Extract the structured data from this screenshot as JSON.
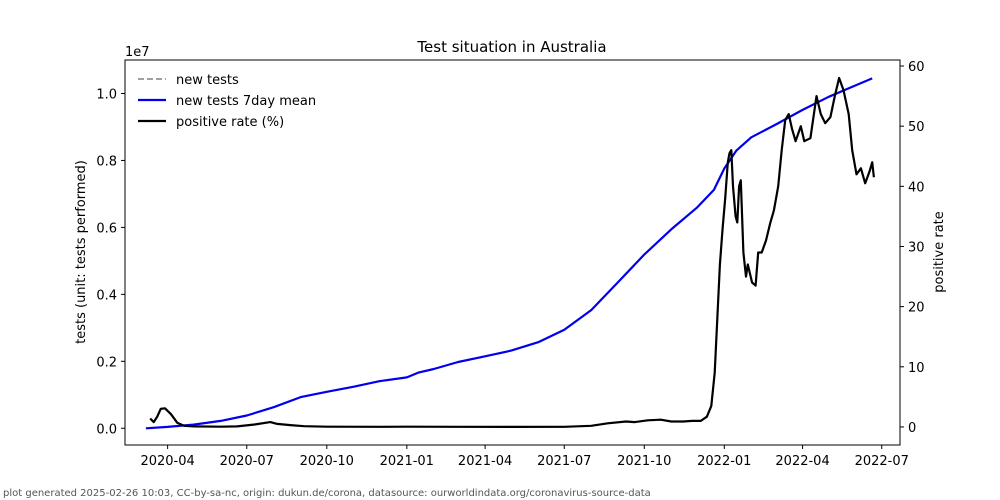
{
  "chart_data": {
    "type": "line",
    "title": "Test situation in Australia",
    "xlabel": "",
    "ylabel_left": "tests (unit: tests performed)",
    "ylabel_right": "positive rate",
    "y_left_offset_text": "1e7",
    "y_left_scale": 10000000,
    "x_range": [
      "2020-02-12",
      "2022-07-22"
    ],
    "y_left_range": [
      -0.05,
      1.1
    ],
    "y_right_range": [
      -3,
      61
    ],
    "x_ticks": [
      {
        "date": "2020-04-01",
        "label": "2020-04"
      },
      {
        "date": "2020-07-01",
        "label": "2020-07"
      },
      {
        "date": "2020-10-01",
        "label": "2020-10"
      },
      {
        "date": "2021-01-01",
        "label": "2021-01"
      },
      {
        "date": "2021-04-01",
        "label": "2021-04"
      },
      {
        "date": "2021-07-01",
        "label": "2021-07"
      },
      {
        "date": "2021-10-01",
        "label": "2021-10"
      },
      {
        "date": "2022-01-01",
        "label": "2022-01"
      },
      {
        "date": "2022-04-01",
        "label": "2022-04"
      },
      {
        "date": "2022-07-01",
        "label": "2022-07"
      }
    ],
    "y_left_ticks": [
      "0.0",
      "0.2",
      "0.4",
      "0.6",
      "0.8",
      "1.0"
    ],
    "y_right_ticks": [
      "0",
      "10",
      "20",
      "30",
      "40",
      "50",
      "60"
    ],
    "legend_position": "top-left",
    "grid": false,
    "series": [
      {
        "name": "new tests",
        "axis": "left",
        "color": "#808080",
        "style": "dashed",
        "points": []
      },
      {
        "name": "new tests 7day mean",
        "axis": "left",
        "color": "#0000ee",
        "style": "solid",
        "points": [
          [
            "2020-03-07",
            0.0
          ],
          [
            "2020-04-01",
            0.004
          ],
          [
            "2020-05-01",
            0.011
          ],
          [
            "2020-06-01",
            0.022
          ],
          [
            "2020-07-01",
            0.038
          ],
          [
            "2020-08-01",
            0.063
          ],
          [
            "2020-09-01",
            0.093
          ],
          [
            "2020-10-01",
            0.109
          ],
          [
            "2020-11-01",
            0.124
          ],
          [
            "2020-12-01",
            0.141
          ],
          [
            "2021-01-01",
            0.152
          ],
          [
            "2021-01-15",
            0.167
          ],
          [
            "2021-02-01",
            0.177
          ],
          [
            "2021-03-01",
            0.198
          ],
          [
            "2021-04-01",
            0.215
          ],
          [
            "2021-05-01",
            0.232
          ],
          [
            "2021-06-01",
            0.257
          ],
          [
            "2021-07-01",
            0.294
          ],
          [
            "2021-08-01",
            0.353
          ],
          [
            "2021-09-01",
            0.437
          ],
          [
            "2021-10-01",
            0.519
          ],
          [
            "2021-11-01",
            0.594
          ],
          [
            "2021-12-01",
            0.66
          ],
          [
            "2021-12-20",
            0.712
          ],
          [
            "2022-01-01",
            0.776
          ],
          [
            "2022-01-15",
            0.83
          ],
          [
            "2022-02-01",
            0.869
          ],
          [
            "2022-03-01",
            0.907
          ],
          [
            "2022-04-01",
            0.951
          ],
          [
            "2022-05-01",
            0.99
          ],
          [
            "2022-06-01",
            1.024
          ],
          [
            "2022-06-20",
            1.045
          ]
        ]
      },
      {
        "name": "positive rate (%)",
        "axis": "right",
        "color": "#000000",
        "style": "solid",
        "points": [
          [
            "2020-03-12",
            1.4
          ],
          [
            "2020-03-16",
            0.8
          ],
          [
            "2020-03-20",
            1.7
          ],
          [
            "2020-03-24",
            3.0
          ],
          [
            "2020-03-29",
            3.1
          ],
          [
            "2020-04-05",
            2.1
          ],
          [
            "2020-04-12",
            0.7
          ],
          [
            "2020-04-20",
            0.2
          ],
          [
            "2020-05-01",
            0.1
          ],
          [
            "2020-06-01",
            0.05
          ],
          [
            "2020-06-20",
            0.1
          ],
          [
            "2020-07-10",
            0.4
          ],
          [
            "2020-07-28",
            0.8
          ],
          [
            "2020-08-05",
            0.5
          ],
          [
            "2020-08-20",
            0.3
          ],
          [
            "2020-09-05",
            0.12
          ],
          [
            "2020-10-01",
            0.05
          ],
          [
            "2020-12-01",
            0.02
          ],
          [
            "2021-01-01",
            0.05
          ],
          [
            "2021-03-01",
            0.02
          ],
          [
            "2021-05-01",
            0.01
          ],
          [
            "2021-07-01",
            0.03
          ],
          [
            "2021-08-01",
            0.2
          ],
          [
            "2021-08-20",
            0.6
          ],
          [
            "2021-09-10",
            0.9
          ],
          [
            "2021-09-20",
            0.8
          ],
          [
            "2021-10-05",
            1.1
          ],
          [
            "2021-10-20",
            1.2
          ],
          [
            "2021-11-01",
            0.9
          ],
          [
            "2021-11-15",
            0.9
          ],
          [
            "2021-11-25",
            1.0
          ],
          [
            "2021-12-05",
            1.0
          ],
          [
            "2021-12-12",
            1.7
          ],
          [
            "2021-12-17",
            3.5
          ],
          [
            "2021-12-21",
            9.0
          ],
          [
            "2021-12-24",
            18.0
          ],
          [
            "2021-12-27",
            27.0
          ],
          [
            "2021-12-30",
            33.0
          ],
          [
            "2022-01-02",
            38.0
          ],
          [
            "2022-01-05",
            44.0
          ],
          [
            "2022-01-07",
            45.5
          ],
          [
            "2022-01-09",
            46.0
          ],
          [
            "2022-01-11",
            40.0
          ],
          [
            "2022-01-14",
            35.0
          ],
          [
            "2022-01-16",
            34.0
          ],
          [
            "2022-01-18",
            40.0
          ],
          [
            "2022-01-20",
            41.0
          ],
          [
            "2022-01-23",
            29.0
          ],
          [
            "2022-01-26",
            25.0
          ],
          [
            "2022-01-28",
            27.0
          ],
          [
            "2022-02-02",
            24.0
          ],
          [
            "2022-02-06",
            23.5
          ],
          [
            "2022-02-09",
            29.0
          ],
          [
            "2022-02-13",
            29.0
          ],
          [
            "2022-02-18",
            31.0
          ],
          [
            "2022-02-23",
            34.0
          ],
          [
            "2022-02-27",
            36.0
          ],
          [
            "2022-03-04",
            40.0
          ],
          [
            "2022-03-08",
            46.0
          ],
          [
            "2022-03-12",
            51.0
          ],
          [
            "2022-03-16",
            52.0
          ],
          [
            "2022-03-20",
            49.5
          ],
          [
            "2022-03-24",
            47.5
          ],
          [
            "2022-03-30",
            50.0
          ],
          [
            "2022-04-03",
            47.5
          ],
          [
            "2022-04-10",
            48.0
          ],
          [
            "2022-04-17",
            55.0
          ],
          [
            "2022-04-22",
            52.0
          ],
          [
            "2022-04-27",
            50.5
          ],
          [
            "2022-05-03",
            51.5
          ],
          [
            "2022-05-08",
            55.0
          ],
          [
            "2022-05-13",
            58.0
          ],
          [
            "2022-05-18",
            56.0
          ],
          [
            "2022-05-24",
            52.0
          ],
          [
            "2022-05-28",
            46.0
          ],
          [
            "2022-06-02",
            42.0
          ],
          [
            "2022-06-07",
            43.0
          ],
          [
            "2022-06-12",
            40.5
          ],
          [
            "2022-06-17",
            42.5
          ],
          [
            "2022-06-20",
            44.0
          ],
          [
            "2022-06-22",
            41.5
          ]
        ]
      }
    ]
  },
  "footer": "plot generated 2025-02-26 10:03, CC-by-sa-nc, origin: dukun.de/corona, datasource: ourworldindata.org/coronavirus-source-data"
}
